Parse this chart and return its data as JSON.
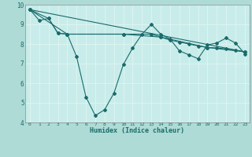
{
  "xlabel": "Humidex (Indice chaleur)",
  "xlim": [
    -0.5,
    23.5
  ],
  "ylim": [
    4,
    10
  ],
  "yticks": [
    4,
    5,
    6,
    7,
    8,
    9,
    10
  ],
  "xticks": [
    0,
    1,
    2,
    3,
    4,
    5,
    6,
    7,
    8,
    9,
    10,
    11,
    12,
    13,
    14,
    15,
    16,
    17,
    18,
    19,
    20,
    21,
    22,
    23
  ],
  "background_color": "#aedbd5",
  "plot_bg_color": "#c8ecea",
  "grid_color": "#e0f5f2",
  "line_color": "#1a6b6b",
  "line1_x": [
    0,
    1,
    2,
    3,
    4,
    5,
    6,
    7,
    8,
    9,
    10,
    11,
    12,
    13,
    14,
    15,
    16,
    17,
    18,
    19,
    20,
    21,
    22,
    23
  ],
  "line1_y": [
    9.75,
    9.2,
    9.3,
    8.55,
    8.5,
    7.35,
    5.3,
    4.35,
    4.65,
    5.5,
    6.95,
    7.8,
    8.5,
    9.0,
    8.5,
    8.25,
    7.65,
    7.45,
    7.25,
    7.95,
    8.05,
    8.3,
    8.05,
    7.5
  ],
  "line2_x": [
    0,
    2,
    3,
    4,
    10,
    13,
    14,
    15,
    16,
    17,
    18,
    19,
    20,
    21,
    22,
    23
  ],
  "line2_y": [
    9.75,
    9.3,
    8.55,
    8.5,
    8.5,
    8.5,
    8.35,
    8.2,
    8.1,
    8.0,
    7.9,
    7.82,
    7.8,
    7.75,
    7.68,
    7.6
  ],
  "line3_x": [
    0,
    23
  ],
  "line3_y": [
    9.75,
    7.6
  ],
  "line4_x": [
    0,
    4,
    10,
    14,
    19,
    23
  ],
  "line4_y": [
    9.75,
    8.5,
    8.5,
    8.35,
    7.82,
    7.6
  ]
}
